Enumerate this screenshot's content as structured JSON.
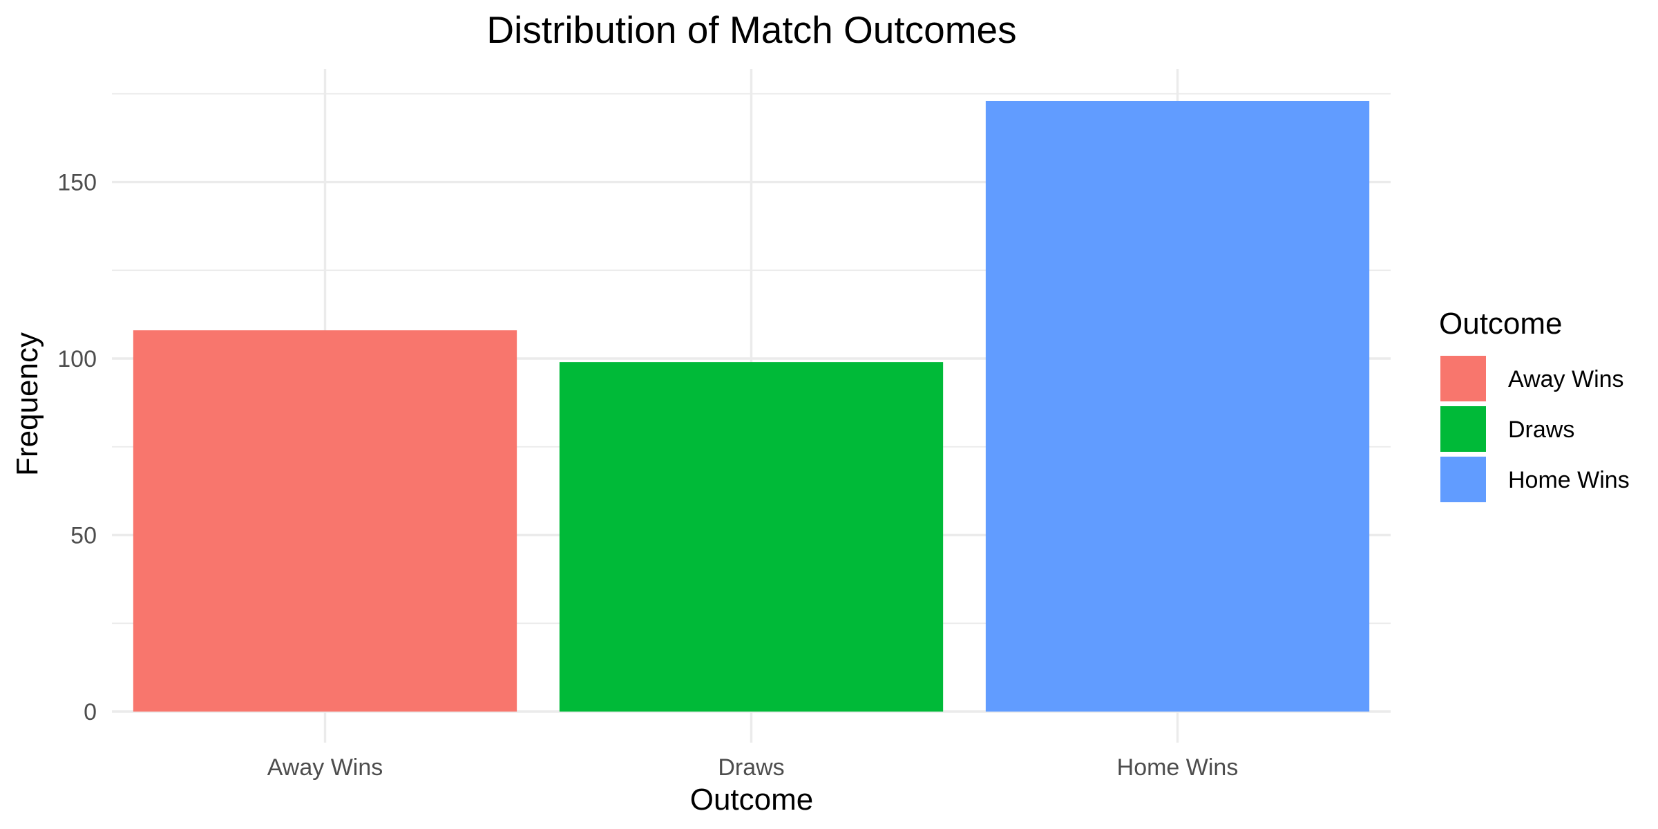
{
  "chart_data": {
    "type": "bar",
    "title": "Distribution of Match Outcomes",
    "xlabel": "Outcome",
    "ylabel": "Frequency",
    "categories": [
      "Away Wins",
      "Draws",
      "Home Wins"
    ],
    "values": [
      108,
      99,
      173
    ],
    "colors": [
      "#F8766D",
      "#00BA38",
      "#619CFF"
    ],
    "ylim": [
      0,
      182
    ],
    "yticks": [
      0,
      50,
      100,
      150
    ],
    "grid": true,
    "legend": {
      "title": "Outcome",
      "position": "right",
      "entries": [
        "Away Wins",
        "Draws",
        "Home Wins"
      ]
    }
  }
}
